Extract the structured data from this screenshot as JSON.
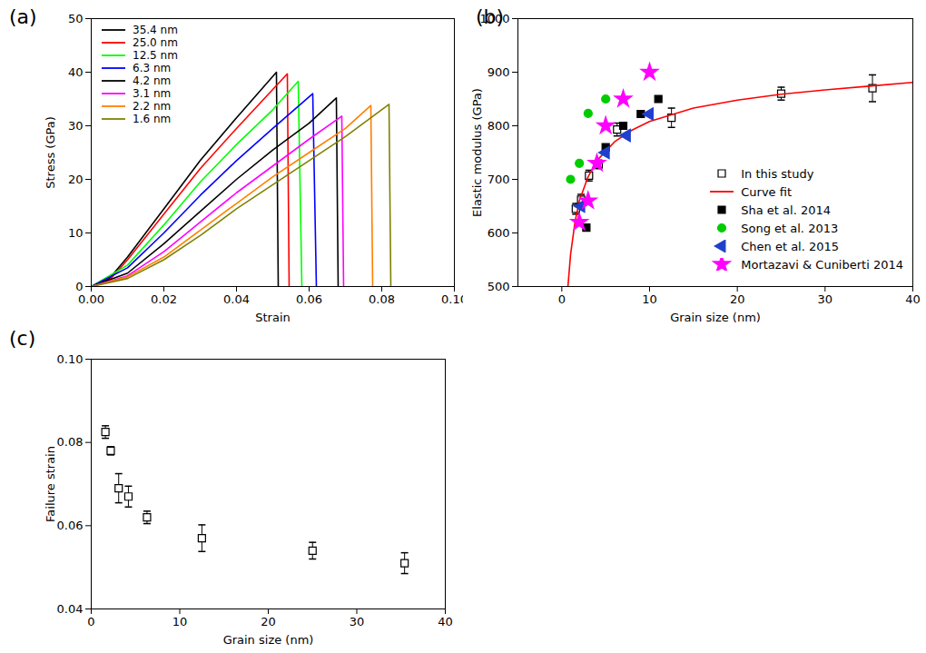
{
  "chart_data": [
    {
      "type": "line",
      "title": "(a)",
      "xlabel": "Strain",
      "ylabel": "Stress (GPa)",
      "xlim": [
        0,
        0.1
      ],
      "xticks": [
        {
          "value": 0,
          "label": "0.00"
        },
        0.02,
        0.04,
        0.06,
        0.08,
        {
          "value": 0.1,
          "label": "0.10"
        }
      ],
      "ylim": [
        0,
        50
      ],
      "yticks": [
        0,
        10,
        20,
        30,
        40,
        50
      ],
      "grid": false,
      "legend": "upper left",
      "series": [
        {
          "name": "35.4 nm",
          "color": "#000000",
          "x": [
            0,
            0.005,
            0.01,
            0.02,
            0.03,
            0.04,
            0.051,
            0.0515
          ],
          "values": [
            0,
            1.5,
            5.5,
            14.5,
            23.5,
            31.5,
            40.0,
            0
          ]
        },
        {
          "name": "25.0 nm",
          "color": "#ff0000",
          "x": [
            0,
            0.005,
            0.01,
            0.02,
            0.03,
            0.04,
            0.054,
            0.0545
          ],
          "values": [
            0,
            1.2,
            5,
            13.5,
            22,
            29.5,
            39.7,
            0
          ]
        },
        {
          "name": "12.5 nm",
          "color": "#00ff00",
          "x": [
            0,
            0.01,
            0.02,
            0.03,
            0.04,
            0.05,
            0.057,
            0.058
          ],
          "values": [
            0,
            4,
            11.5,
            19.5,
            26.5,
            33,
            38.3,
            0
          ]
        },
        {
          "name": "6.3 nm",
          "color": "#0000ff",
          "x": [
            0,
            0.01,
            0.02,
            0.03,
            0.04,
            0.05,
            0.061,
            0.062
          ],
          "values": [
            0,
            3.5,
            10,
            17,
            23.5,
            29.5,
            36,
            0
          ]
        },
        {
          "name": "4.2 nm",
          "color": "#000000",
          "x": [
            0,
            0.01,
            0.02,
            0.03,
            0.04,
            0.05,
            0.06,
            0.0675,
            0.068
          ],
          "values": [
            0,
            2.5,
            8,
            14,
            20,
            25.5,
            30.5,
            35.2,
            0
          ]
        },
        {
          "name": "3.1 nm",
          "color": "#ff00ff",
          "x": [
            0,
            0.01,
            0.02,
            0.03,
            0.04,
            0.05,
            0.06,
            0.069,
            0.0695
          ],
          "values": [
            0,
            2,
            6.5,
            12,
            17.5,
            22.5,
            27.5,
            31.8,
            0
          ]
        },
        {
          "name": "2.2 nm",
          "color": "#ff8000",
          "x": [
            0,
            0.01,
            0.02,
            0.03,
            0.04,
            0.05,
            0.06,
            0.07,
            0.077,
            0.0775
          ],
          "values": [
            0,
            1.8,
            5.5,
            10.5,
            15.5,
            20.5,
            25,
            29.5,
            33.8,
            0
          ]
        },
        {
          "name": "1.6 nm",
          "color": "#808000",
          "x": [
            0,
            0.01,
            0.02,
            0.03,
            0.04,
            0.05,
            0.06,
            0.07,
            0.082,
            0.0825
          ],
          "values": [
            0,
            1.5,
            5,
            9.5,
            14.5,
            19,
            23.5,
            28,
            34,
            0
          ]
        }
      ]
    },
    {
      "type": "scatter",
      "title": "(b)",
      "xlabel": "Grain size (nm)",
      "ylabel": "Elastic modulus (GPa)",
      "xlim": [
        -5,
        40
      ],
      "xticks": [
        0,
        10,
        20,
        30,
        40
      ],
      "ylim": [
        500,
        1000
      ],
      "yticks": [
        500,
        600,
        700,
        800,
        900,
        1000
      ],
      "grid": false,
      "legend": "lower right",
      "series": [
        {
          "name": "In this study",
          "type": "scatter",
          "marker": "square-open",
          "color": "#000000",
          "x": [
            1.6,
            2.2,
            3.1,
            4.2,
            6.3,
            12.5,
            25,
            35.4
          ],
          "values": [
            645,
            662,
            707,
            728,
            793,
            815,
            860,
            870
          ],
          "errors": [
            10,
            10,
            10,
            8,
            12,
            18,
            12,
            25
          ]
        },
        {
          "name": "Curve fit",
          "type": "line",
          "line_style": "solid",
          "color": "#ff0000",
          "x": [
            0.7,
            1,
            1.5,
            2,
            3,
            4,
            6,
            8,
            10,
            15,
            20,
            25,
            30,
            35,
            40
          ],
          "values": [
            500,
            560,
            620,
            660,
            705,
            735,
            770,
            792,
            808,
            833,
            848,
            859,
            867,
            874,
            881
          ]
        },
        {
          "name": "Sha et al. 2014",
          "type": "scatter",
          "marker": "square",
          "color": "#000000",
          "x": [
            2.8,
            5,
            7,
            9,
            11
          ],
          "values": [
            610,
            760,
            800,
            822,
            850
          ]
        },
        {
          "name": "Song et al. 2013",
          "type": "scatter",
          "marker": "circle",
          "color": "#00cc00",
          "x": [
            1,
            2,
            3,
            5
          ],
          "values": [
            700,
            730,
            823,
            850
          ]
        },
        {
          "name": "Chen et al. 2015",
          "type": "scatter",
          "marker": "triangle-left",
          "color": "#1f3fcc",
          "x": [
            2.2,
            5,
            7.4,
            10
          ],
          "values": [
            650,
            750,
            782,
            822
          ]
        },
        {
          "name": "Mortazavi & Cuniberti 2014",
          "type": "scatter",
          "marker": "star",
          "color": "#ff00ff",
          "x": [
            2,
            3,
            4,
            5,
            7,
            10
          ],
          "values": [
            620,
            660,
            730,
            800,
            850,
            900
          ]
        }
      ]
    },
    {
      "type": "scatter",
      "title": "(c)",
      "xlabel": "Grain size (nm)",
      "ylabel": "Failure strain",
      "xlim": [
        0,
        40
      ],
      "xticks": [
        0,
        10,
        20,
        30,
        40
      ],
      "ylim": [
        0.04,
        0.1
      ],
      "yticks": [
        0.04,
        0.06,
        0.08,
        {
          "value": 0.1,
          "label": "0.10"
        }
      ],
      "grid": false,
      "marker": "square-open",
      "color": "#000000",
      "x": [
        1.6,
        2.2,
        3.1,
        4.2,
        6.3,
        12.5,
        25,
        35.4
      ],
      "values": [
        0.0825,
        0.078,
        0.069,
        0.067,
        0.062,
        0.057,
        0.054,
        0.051
      ],
      "errors": [
        0.0015,
        0.001,
        0.0035,
        0.0025,
        0.0015,
        0.0032,
        0.002,
        0.0025
      ]
    }
  ]
}
